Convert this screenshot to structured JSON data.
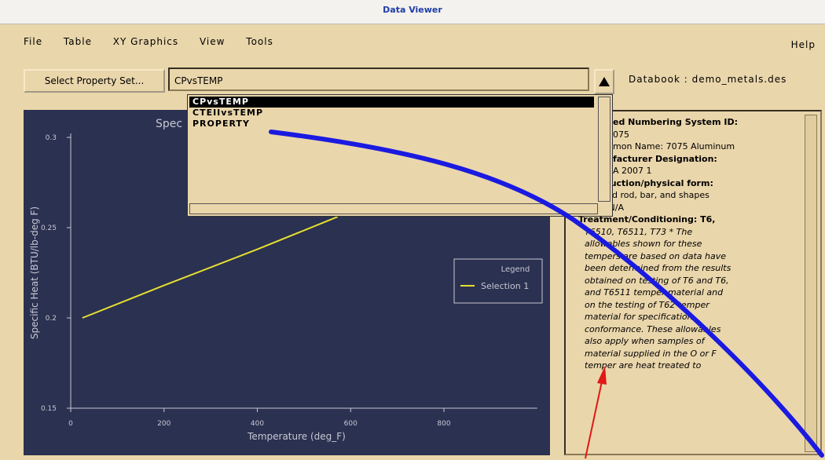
{
  "window": {
    "title": "Data Viewer"
  },
  "menu": {
    "items": [
      "File",
      "Table",
      "XY Graphics",
      "View",
      "Tools"
    ],
    "help": "Help"
  },
  "toolbar": {
    "button": "Select Property Set...",
    "input": "CPvsTEMP",
    "databook": "Databook : demo_metals.des"
  },
  "dropdown": {
    "items": [
      "CPvsTEMP",
      "CTEIIvsTEMP",
      "PROPERTY"
    ]
  },
  "chart_data": {
    "type": "line",
    "title": "Spec",
    "x_label": "Temperature (deg_F)",
    "y_label": "Specific Heat (BTU/lb-deg F)",
    "x": [
      25,
      200,
      400,
      572
    ],
    "series": [
      {
        "name": "Selection 1",
        "color": "#e6e030",
        "values": [
          0.2,
          0.218,
          0.238,
          0.256
        ]
      }
    ],
    "xlim": [
      0,
      1000
    ],
    "xticks": [
      0,
      200,
      400,
      600,
      800
    ],
    "ylim": [
      0.15,
      0.3
    ],
    "yticks": [
      0.15,
      0.2,
      0.25,
      0.3
    ],
    "legend_title": "Legend",
    "legend": "right"
  },
  "details": {
    "lines": [
      "ed Numbering System ID:",
      "075",
      "mon Name:  7075 Aluminum",
      "facturer Designation:",
      "A 2007 1",
      "Construction/physical form:",
      "Extruded rod, bar, and shapes",
      "Finish: N/A",
      "Treatment/Conditioning:  T6,",
      "T6510, T6511, T73 * The",
      "allowables shown for these",
      "tempers are based on data have",
      "been determined from the results",
      "obtained on testing of T6 and T6,",
      "and T6511 temper material and",
      "on the testing of T62 temper",
      "material for specification",
      "conformance. These allowables",
      "also apply when samples of",
      "material supplied in the O or F",
      "temper are heat treated to"
    ]
  }
}
